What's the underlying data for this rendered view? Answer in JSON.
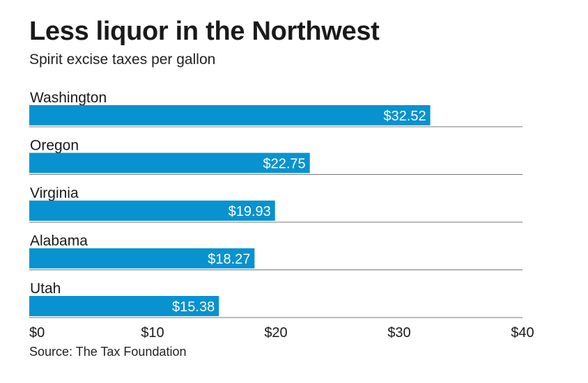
{
  "title": "Less liquor in the Northwest",
  "subtitle": "Spirit excise taxes per gallon",
  "source": "Source: The Tax Foundation",
  "colors": {
    "bar": "#0892d0",
    "rule": "#777777",
    "text": "#1a1a1a"
  },
  "chart_data": {
    "type": "bar",
    "orientation": "horizontal",
    "categories": [
      "Washington",
      "Oregon",
      "Virginia",
      "Alabama",
      "Utah"
    ],
    "values": [
      32.52,
      22.75,
      19.93,
      18.27,
      15.38
    ],
    "value_labels": [
      "$32.52",
      "$22.75",
      "$19.93",
      "$18.27",
      "$15.38"
    ],
    "xlim": [
      0,
      40
    ],
    "ticks": [
      0,
      10,
      20,
      30,
      40
    ],
    "tick_labels": [
      "$0",
      "$10",
      "$20",
      "$30",
      "$40"
    ],
    "grid": false
  }
}
